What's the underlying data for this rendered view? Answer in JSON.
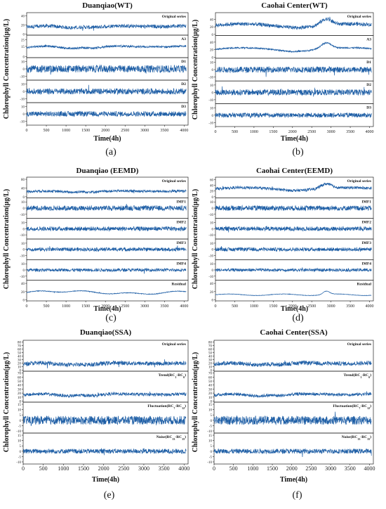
{
  "series_color": "#1f5fa6",
  "chart_data": [
    {
      "type": "line",
      "title": "Duanqiao(WT)",
      "caption": "(a)",
      "ylabel": "Chlorophyll Concentration(μg/L)",
      "xlabel": "Time(4h)",
      "xlim": [
        0,
        4100
      ],
      "xticks": [
        0,
        500,
        1000,
        1500,
        2000,
        2500,
        3000,
        3500,
        4000
      ],
      "panels": [
        {
          "name": "Original series",
          "yticks": [
            0,
            20,
            40
          ],
          "ylim": [
            0,
            45
          ],
          "base": 12,
          "amp": 10,
          "noise": 4,
          "trend": "wt"
        },
        {
          "name": "A3",
          "yticks": [
            0,
            15,
            25
          ],
          "ylim": [
            0,
            30
          ],
          "base": 10,
          "amp": 9,
          "noise": 1.5,
          "trend": "wt"
        },
        {
          "name": "D1",
          "yticks": [
            -10,
            0,
            10
          ],
          "ylim": [
            -14,
            14
          ],
          "base": 0,
          "amp": 0,
          "noise": 5,
          "trend": "none"
        },
        {
          "name": "D2",
          "yticks": [
            -10,
            0,
            10
          ],
          "ylim": [
            -14,
            14
          ],
          "base": 0,
          "amp": 0,
          "noise": 4,
          "trend": "none"
        },
        {
          "name": "D3",
          "yticks": [
            -10,
            0,
            10
          ],
          "ylim": [
            -14,
            14
          ],
          "base": 0,
          "amp": 0,
          "noise": 3.5,
          "trend": "none"
        }
      ]
    },
    {
      "type": "line",
      "title": "Caohai Center(WT)",
      "caption": "(b)",
      "ylabel": "Chlorophyll Concentration(μg/L)",
      "xlabel": "Time(4h)",
      "xlim": [
        0,
        4100
      ],
      "xticks": [
        0,
        500,
        1000,
        1500,
        2000,
        2500,
        3000,
        3500,
        4000
      ],
      "panels": [
        {
          "name": "Original series",
          "yticks": [
            0,
            20,
            40
          ],
          "ylim": [
            0,
            55
          ],
          "base": 18,
          "amp": 18,
          "noise": 5,
          "trend": "caohai"
        },
        {
          "name": "A3",
          "yticks": [
            0,
            20,
            40
          ],
          "ylim": [
            0,
            55
          ],
          "base": 15,
          "amp": 18,
          "noise": 2,
          "trend": "caohai"
        },
        {
          "name": "D1",
          "yticks": [
            -10,
            0,
            10
          ],
          "ylim": [
            -14,
            14
          ],
          "base": 0,
          "amp": 0,
          "noise": 4,
          "trend": "none"
        },
        {
          "name": "D2",
          "yticks": [
            -10,
            0,
            10
          ],
          "ylim": [
            -14,
            14
          ],
          "base": 0,
          "amp": 0,
          "noise": 4,
          "trend": "none"
        },
        {
          "name": "D3",
          "yticks": [
            -10,
            0,
            10
          ],
          "ylim": [
            -14,
            14
          ],
          "base": 0,
          "amp": 0,
          "noise": 3,
          "trend": "none"
        }
      ]
    },
    {
      "type": "line",
      "title": "Duanqiao (EEMD)",
      "caption": "(c)",
      "ylabel": "Chlorophyll Concentration(μg/L)",
      "xlabel": "Time(4h)",
      "xlim": [
        0,
        4100
      ],
      "xticks": [
        0,
        500,
        1000,
        1500,
        2000,
        2500,
        3000,
        3500,
        4000
      ],
      "panels": [
        {
          "name": "Original series",
          "yticks": [
            0,
            40,
            80
          ],
          "ylim": [
            0,
            85
          ],
          "base": 18,
          "amp": 14,
          "noise": 6,
          "trend": "wt"
        },
        {
          "name": "IMF1",
          "yticks": [
            -10,
            0,
            10
          ],
          "ylim": [
            -15,
            15
          ],
          "base": 0,
          "amp": 0,
          "noise": 4,
          "trend": "none"
        },
        {
          "name": "IMF2",
          "yticks": [
            -10,
            0,
            10
          ],
          "ylim": [
            -15,
            15
          ],
          "base": 0,
          "amp": 0,
          "noise": 3.5,
          "trend": "none"
        },
        {
          "name": "IMF3",
          "yticks": [
            -10,
            0,
            10
          ],
          "ylim": [
            -15,
            15
          ],
          "base": 0,
          "amp": 0,
          "noise": 3,
          "trend": "none"
        },
        {
          "name": "IMF4",
          "yticks": [
            -10,
            0,
            10
          ],
          "ylim": [
            -15,
            15
          ],
          "base": 0,
          "amp": 0,
          "noise": 2.5,
          "trend": "none"
        },
        {
          "name": "Residual",
          "yticks": [
            0,
            20,
            40
          ],
          "ylim": [
            0,
            45
          ],
          "base": 14,
          "amp": 10,
          "noise": 0.8,
          "trend": "smooth"
        }
      ]
    },
    {
      "type": "line",
      "title": "Caohai Center(EEMD)",
      "caption": "(d)",
      "ylabel": "Chlorophyll Concentration(μg/L)",
      "xlabel": "Time(4h)",
      "xlim": [
        0,
        4100
      ],
      "xticks": [
        0,
        500,
        1000,
        1500,
        2000,
        2500,
        3000,
        3500,
        4000
      ],
      "panels": [
        {
          "name": "Original series",
          "yticks": [
            0,
            20,
            40,
            60
          ],
          "ylim": [
            0,
            65
          ],
          "base": 22,
          "amp": 18,
          "noise": 5,
          "trend": "caohai"
        },
        {
          "name": "IMF1",
          "yticks": [
            -10,
            0,
            10
          ],
          "ylim": [
            -15,
            15
          ],
          "base": 0,
          "amp": 0,
          "noise": 4,
          "trend": "none"
        },
        {
          "name": "IMF2",
          "yticks": [
            -10,
            0,
            10
          ],
          "ylim": [
            -15,
            15
          ],
          "base": 0,
          "amp": 0,
          "noise": 3.5,
          "trend": "none"
        },
        {
          "name": "IMF3",
          "yticks": [
            -10,
            0,
            10
          ],
          "ylim": [
            -15,
            15
          ],
          "base": 0,
          "amp": 0,
          "noise": 3,
          "trend": "none"
        },
        {
          "name": "IMF4",
          "yticks": [
            -10,
            0,
            10
          ],
          "ylim": [
            -15,
            15
          ],
          "base": 0,
          "amp": 0,
          "noise": 2.5,
          "trend": "none"
        },
        {
          "name": "Residual",
          "yticks": [
            0,
            20,
            40
          ],
          "ylim": [
            0,
            45
          ],
          "base": 10,
          "amp": 12,
          "noise": 0.5,
          "trend": "caohai-smooth"
        }
      ]
    },
    {
      "type": "line",
      "title": "Duanqiao(SSA)",
      "caption": "(e)",
      "ylabel": "Chlorophyll Concentration(μg/L)",
      "xlabel": "Time(4h)",
      "xlim": [
        0,
        4100
      ],
      "xticks": [
        0,
        500,
        1000,
        1500,
        2000,
        2500,
        3000,
        3500,
        4000
      ],
      "panels": [
        {
          "name": "Original series",
          "yticks": [
            0,
            10,
            20,
            30,
            40,
            50,
            60,
            70,
            80
          ],
          "ylim": [
            0,
            82
          ],
          "base": 12,
          "amp": 14,
          "noise": 6,
          "trend": "wt"
        },
        {
          "name": "Trend(RC1-RC6)",
          "label_main": "Trend(RC",
          "label_sub1": "1",
          "label_mid": "-RC",
          "label_sub2": "6",
          "label_end": ")",
          "yticks": [
            0,
            10,
            20,
            30,
            40,
            50,
            60,
            70
          ],
          "ylim": [
            0,
            72
          ],
          "base": 10,
          "amp": 13,
          "noise": 4,
          "trend": "wt"
        },
        {
          "name": "Fluctuation(RC7-RC12)",
          "label_main": "Fluctuation(RC",
          "label_sub1": "7",
          "label_mid": "-RC",
          "label_sub2": "12",
          "label_end": ")",
          "yticks": [
            -10,
            -5,
            0,
            5,
            10,
            15
          ],
          "ylim": [
            -11,
            16
          ],
          "base": 0,
          "amp": 0,
          "noise": 4,
          "trend": "none"
        },
        {
          "name": "Noise(RC13-RC15)",
          "label_main": "Noise(RC",
          "label_sub1": "13",
          "label_mid": "-RC",
          "label_sub2": "15",
          "label_end": ")",
          "yticks": [
            -10,
            -5,
            0,
            5,
            10,
            15
          ],
          "ylim": [
            -11,
            16
          ],
          "base": 0,
          "amp": 0,
          "noise": 2.2,
          "trend": "none"
        }
      ]
    },
    {
      "type": "line",
      "title": "Caohai Center(SSA)",
      "caption": "(f)",
      "ylabel": "Chlorophyll Concentration(μg/L)",
      "xlabel": "Time(4h)",
      "xlim": [
        0,
        4100
      ],
      "xticks": [
        0,
        500,
        1000,
        1500,
        2000,
        2500,
        3000,
        3500,
        4000
      ],
      "panels": [
        {
          "name": "Original series",
          "yticks": [
            0,
            10,
            20,
            30,
            40,
            50,
            60,
            70,
            80
          ],
          "ylim": [
            0,
            82
          ],
          "base": 12,
          "amp": 14,
          "noise": 6,
          "trend": "wt"
        },
        {
          "name": "Trend(RC1-RC6)",
          "label_main": "Trend(RC",
          "label_sub1": "1",
          "label_mid": "-RC",
          "label_sub2": "6",
          "label_end": ")",
          "yticks": [
            0,
            10,
            20,
            30,
            40,
            50,
            60,
            70
          ],
          "ylim": [
            0,
            72
          ],
          "base": 10,
          "amp": 13,
          "noise": 4,
          "trend": "wt"
        },
        {
          "name": "Fluctuation(RC7-RC12)",
          "label_main": "Fluctuation(RC",
          "label_sub1": "7",
          "label_mid": "-RC",
          "label_sub2": "12",
          "label_end": ")",
          "yticks": [
            -10,
            -5,
            0,
            5,
            10,
            15
          ],
          "ylim": [
            -11,
            16
          ],
          "base": 0,
          "amp": 0,
          "noise": 4,
          "trend": "none"
        },
        {
          "name": "Noise(RC13-RC15)",
          "label_main": "Noise(RC",
          "label_sub1": "13",
          "label_mid": "-RC",
          "label_sub2": "15",
          "label_end": ")",
          "yticks": [
            -10,
            -5,
            0,
            5,
            10,
            15
          ],
          "ylim": [
            -11,
            16
          ],
          "base": 0,
          "amp": 0,
          "noise": 2.2,
          "trend": "none"
        }
      ]
    }
  ]
}
